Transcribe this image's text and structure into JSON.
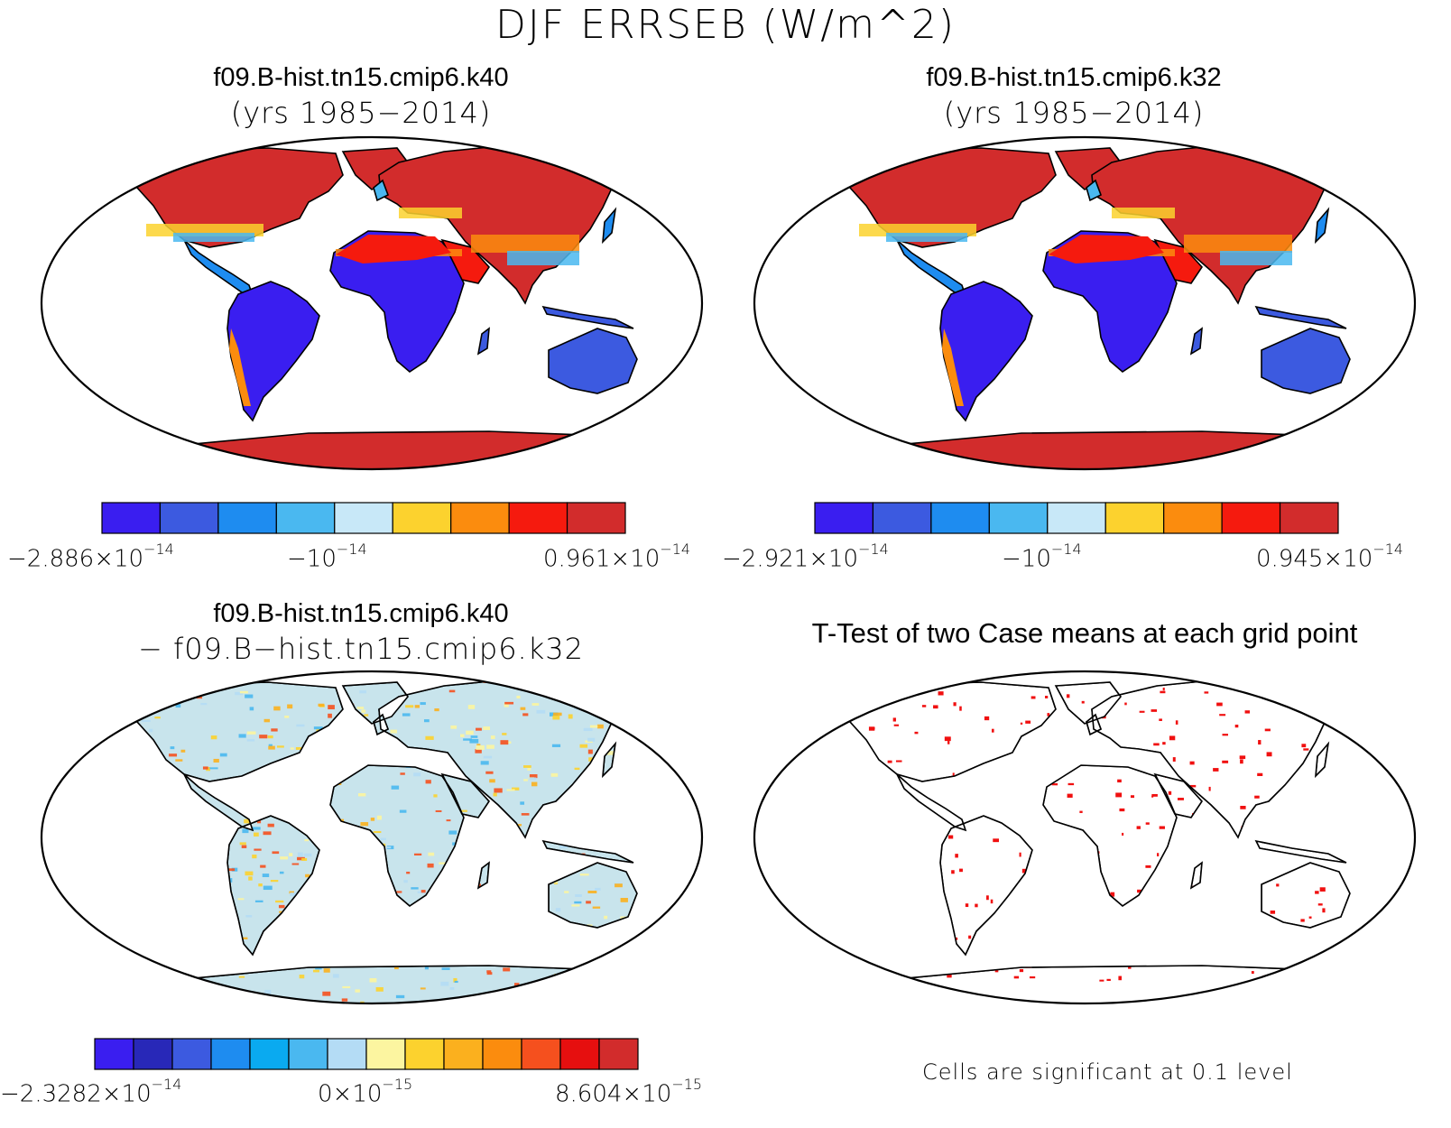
{
  "title": "DJF ERRSEB (W/m^2)",
  "panels": [
    {
      "id": "case1",
      "title": "f09.B-hist.tn15.cmip6.k40",
      "subtitle": "(yrs 1985−2014)",
      "colorbar": {
        "colors": [
          "#3a1ef0",
          "#3c5ae0",
          "#1e8cf0",
          "#4ab8f0",
          "#c8e8f8",
          "#fcd22e",
          "#fb8c0e",
          "#f51a0e",
          "#d22c2c"
        ],
        "tick_left": {
          "mantissa": "−2.886×10",
          "exp": "−14"
        },
        "tick_mid": {
          "mantissa": "−10",
          "exp": "−14"
        },
        "tick_right": {
          "mantissa": "0.961×10",
          "exp": "−14"
        }
      }
    },
    {
      "id": "case2",
      "title": "f09.B-hist.tn15.cmip6.k32",
      "subtitle": "(yrs 1985−2014)",
      "colorbar": {
        "colors": [
          "#3a1ef0",
          "#3c5ae0",
          "#1e8cf0",
          "#4ab8f0",
          "#c8e8f8",
          "#fcd22e",
          "#fb8c0e",
          "#f51a0e",
          "#d22c2c"
        ],
        "tick_left": {
          "mantissa": "−2.921×10",
          "exp": "−14"
        },
        "tick_mid": {
          "mantissa": "−10",
          "exp": "−14"
        },
        "tick_right": {
          "mantissa": "0.945×10",
          "exp": "−14"
        }
      }
    },
    {
      "id": "diff",
      "title": "f09.B-hist.tn15.cmip6.k40",
      "subtitle": "− f09.B−hist.tn15.cmip6.k32",
      "colorbar": {
        "colors": [
          "#3a1ef0",
          "#2828b8",
          "#3c5ae0",
          "#1e8cf0",
          "#0aaaf0",
          "#4ab8f0",
          "#b4dcf5",
          "#fcf5a0",
          "#fcd22e",
          "#fbb01e",
          "#fb8c0e",
          "#f5501e",
          "#e60f0f",
          "#d22c2c"
        ],
        "tick_left": {
          "mantissa": "−2.3282×10",
          "exp": "−14"
        },
        "tick_mid": {
          "mantissa": "0×10",
          "exp": "−15"
        },
        "tick_right": {
          "mantissa": "8.604×10",
          "exp": "−15"
        }
      }
    },
    {
      "id": "ttest",
      "title": "T-Test of two Case means at each grid point",
      "note": "Cells are significant at 0.1 level"
    }
  ]
}
